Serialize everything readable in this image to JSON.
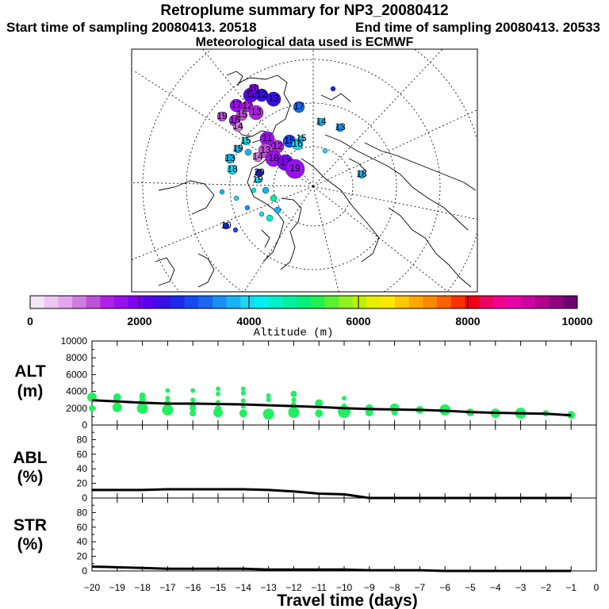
{
  "titles": {
    "main": "Retroplume summary for NP3_20080412",
    "start": "Start time of sampling 20080413. 20518",
    "end": "End time of sampling 20080413. 20533",
    "met": "Meteorological data used is ECMWF"
  },
  "colorbar": {
    "colors": [
      "#f5e6f7",
      "#ecc8f0",
      "#e0a8ea",
      "#d07be0",
      "#c050d8",
      "#b020e8",
      "#9a10f0",
      "#7f00f5",
      "#5a00f0",
      "#3810ea",
      "#1c28ee",
      "#1848f4",
      "#1868f4",
      "#1890f4",
      "#18b4f4",
      "#18d8f4",
      "#00f0f0",
      "#00f0c8",
      "#00f0a0",
      "#00f078",
      "#20f050",
      "#58f030",
      "#90f020",
      "#c0f000",
      "#e8f000",
      "#ffe800",
      "#ffc800",
      "#ffa800",
      "#ff8800",
      "#ff6000",
      "#ff3000",
      "#f00010",
      "#f00060",
      "#f00090",
      "#e800a8",
      "#d000a0",
      "#b00090",
      "#900080",
      "#700070"
    ],
    "ticks": [
      "0",
      "2000",
      "4000",
      "6000",
      "8000",
      "10000"
    ],
    "label": "Altitude (m)"
  },
  "panels": {
    "alt": {
      "label_line1": "ALT",
      "label_line2": "(m)",
      "yticks": [
        "0",
        "2000",
        "4000",
        "6000",
        "8000",
        "10000"
      ]
    },
    "abl": {
      "label_line1": "ABL",
      "label_line2": "(%)",
      "yticks": [
        "0",
        "20",
        "40",
        "60",
        "80"
      ]
    },
    "str": {
      "label_line1": "STR",
      "label_line2": "(%)",
      "yticks": [
        "0",
        "20",
        "40",
        "60",
        "80"
      ]
    }
  },
  "xaxis": {
    "ticks": [
      "−20",
      "−19",
      "−18",
      "−17",
      "−16",
      "−15",
      "−14",
      "−13",
      "−12",
      "−11",
      "−10",
      "−9",
      "−8",
      "−7",
      "−6",
      "−5",
      "−4",
      "−3",
      "−2",
      "−1",
      "0"
    ],
    "label": "Travel time (days)"
  },
  "chart_data": {
    "type": "line",
    "x": [
      -20,
      -19,
      -18,
      -17,
      -16,
      -15,
      -14,
      -13,
      -12,
      -11,
      -10,
      -9,
      -8,
      -7,
      -6,
      -5,
      -4,
      -3,
      -2,
      -1
    ],
    "series": [
      {
        "name": "ALT mean (m)",
        "values": [
          2950,
          2800,
          2650,
          2550,
          2550,
          2500,
          2450,
          2350,
          2250,
          2150,
          2000,
          1900,
          1850,
          1800,
          1700,
          1550,
          1450,
          1400,
          1350,
          1150
        ]
      },
      {
        "name": "ABL (%)",
        "values": [
          11,
          11,
          11,
          12,
          12,
          12,
          12,
          11,
          9,
          6,
          5,
          0,
          0,
          0,
          0,
          0,
          0,
          0,
          0,
          0
        ]
      },
      {
        "name": "STR (%)",
        "values": [
          6,
          5,
          4,
          3,
          3,
          3,
          3,
          2,
          2,
          2,
          2,
          1,
          1,
          1,
          0,
          0,
          0,
          0,
          0,
          0
        ]
      }
    ],
    "alt_clusters": [
      [
        -20,
        3300,
        6
      ],
      [
        -20,
        2000,
        4
      ],
      [
        -19,
        3300,
        5
      ],
      [
        -19,
        2100,
        6
      ],
      [
        -18,
        3500,
        4
      ],
      [
        -18,
        3000,
        4
      ],
      [
        -18,
        2000,
        7
      ],
      [
        -17,
        4100,
        3
      ],
      [
        -17,
        3200,
        3
      ],
      [
        -17,
        2600,
        4
      ],
      [
        -17,
        1800,
        7
      ],
      [
        -16,
        4100,
        3
      ],
      [
        -16,
        3000,
        3
      ],
      [
        -16,
        2400,
        4
      ],
      [
        -16,
        1400,
        4
      ],
      [
        -16,
        2000,
        4
      ],
      [
        -15,
        4300,
        3
      ],
      [
        -15,
        3700,
        3
      ],
      [
        -15,
        2700,
        3
      ],
      [
        -15,
        2000,
        4
      ],
      [
        -15,
        1500,
        6
      ],
      [
        -14,
        4300,
        3
      ],
      [
        -14,
        3800,
        3
      ],
      [
        -14,
        2900,
        3
      ],
      [
        -14,
        2200,
        3
      ],
      [
        -14,
        1400,
        5
      ],
      [
        -13,
        3500,
        3
      ],
      [
        -13,
        3000,
        3
      ],
      [
        -13,
        1300,
        7
      ],
      [
        -12,
        3700,
        4
      ],
      [
        -12,
        3000,
        3
      ],
      [
        -12,
        2500,
        3
      ],
      [
        -12,
        1500,
        7
      ],
      [
        -11,
        2600,
        5
      ],
      [
        -11,
        1400,
        5
      ],
      [
        -10,
        3200,
        3
      ],
      [
        -10,
        2300,
        3
      ],
      [
        -10,
        1600,
        8
      ],
      [
        -9,
        2000,
        5
      ],
      [
        -9,
        1500,
        5
      ],
      [
        -8,
        2000,
        6
      ],
      [
        -8,
        1500,
        4
      ],
      [
        -7,
        1800,
        5
      ],
      [
        -6,
        1800,
        7
      ],
      [
        -5,
        1500,
        5
      ],
      [
        -4,
        1400,
        6
      ],
      [
        -3,
        1400,
        7
      ],
      [
        -2,
        1400,
        4
      ],
      [
        -1,
        1200,
        5
      ]
    ],
    "xlim": [
      -20,
      0
    ],
    "ylim_alt": [
      0,
      10000
    ],
    "ylim_pct": [
      0,
      100
    ],
    "xlabel": "Travel time (days)",
    "ylabel_alt": "ALT (m)",
    "ylabel_abl": "ABL (%)",
    "ylabel_str": "STR (%)"
  },
  "map": {
    "clusters": [
      [
        316,
        120,
        9,
        "#5a00f0",
        "11"
      ],
      [
        330,
        120,
        8,
        "#3810ea",
        "12"
      ],
      [
        345,
        125,
        9,
        "#3810ea",
        "13"
      ],
      [
        320,
        112,
        6,
        "#7f00f5",
        "10"
      ],
      [
        298,
        133,
        8,
        "#9a10f0",
        "17"
      ],
      [
        312,
        134,
        7,
        "#b020e8",
        "12"
      ],
      [
        323,
        142,
        9,
        "#b020e8",
        "13"
      ],
      [
        305,
        145,
        7,
        "#c050d8",
        "15"
      ],
      [
        280,
        147,
        6,
        "#c050d8",
        "19"
      ],
      [
        296,
        152,
        7,
        "#b020e8",
        "16"
      ],
      [
        300,
        160,
        6,
        "#d07be0",
        "14"
      ],
      [
        377,
        135,
        7,
        "#1868f4",
        "17"
      ],
      [
        405,
        154,
        5,
        "#18b4f4",
        "14"
      ],
      [
        429,
        161,
        5,
        "#1890f4",
        "13"
      ],
      [
        420,
        112,
        3,
        "#1c28ee",
        ""
      ],
      [
        337,
        175,
        9,
        "#9a10f0",
        "11"
      ],
      [
        350,
        185,
        8,
        "#b020e8",
        "12"
      ],
      [
        335,
        190,
        9,
        "#c050d8",
        "13"
      ],
      [
        345,
        200,
        10,
        "#9a10f0",
        "18"
      ],
      [
        360,
        205,
        10,
        "#7f00f5",
        "17"
      ],
      [
        372,
        213,
        12,
        "#9a10f0",
        "19"
      ],
      [
        325,
        198,
        6,
        "#d07be0",
        "14"
      ],
      [
        365,
        178,
        8,
        "#1848f4",
        "15"
      ],
      [
        375,
        182,
        7,
        "#18d8f4",
        "16"
      ],
      [
        380,
        175,
        4,
        "#18b4f4",
        "15"
      ],
      [
        300,
        188,
        5,
        "#18b4f4",
        "19"
      ],
      [
        310,
        178,
        5,
        "#18d8f4",
        "15"
      ],
      [
        290,
        200,
        6,
        "#18b4f4",
        "13"
      ],
      [
        293,
        214,
        6,
        "#18d8f4",
        "18"
      ],
      [
        313,
        192,
        4,
        "#18b4f4",
        ""
      ],
      [
        327,
        218,
        5,
        "#1c28ee",
        "20"
      ],
      [
        325,
        227,
        4,
        "#18d8f4",
        "19"
      ],
      [
        335,
        240,
        4,
        "#18b4f4",
        ""
      ],
      [
        320,
        240,
        3,
        "#00f0c8",
        ""
      ],
      [
        345,
        250,
        4,
        "#00f0a0",
        ""
      ],
      [
        350,
        265,
        4,
        "#18b4f4",
        ""
      ],
      [
        340,
        275,
        4,
        "#00f0c8",
        ""
      ],
      [
        330,
        270,
        3,
        "#18d8f4",
        ""
      ],
      [
        285,
        285,
        4,
        "#1c28ee",
        "10"
      ],
      [
        297,
        290,
        3,
        "#1848f4",
        ""
      ],
      [
        456,
        220,
        5,
        "#18b4f4",
        "18"
      ],
      [
        410,
        190,
        3,
        "#18d8f4",
        ""
      ],
      [
        280,
        242,
        3,
        "#18b4f4",
        ""
      ],
      [
        312,
        262,
        3,
        "#1890f4",
        ""
      ],
      [
        298,
        250,
        3,
        "#18d8f4",
        ""
      ]
    ]
  }
}
